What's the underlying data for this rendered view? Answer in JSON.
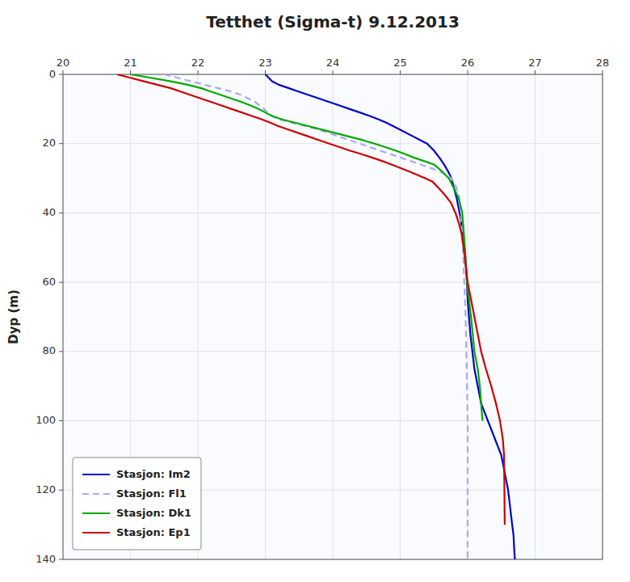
{
  "chart_data": {
    "type": "line",
    "title": "Tetthet (Sigma-t) 9.12.2013",
    "y_label": "Dyp (m)",
    "xlim": [
      20,
      28
    ],
    "ylim": [
      140,
      0
    ],
    "xticks": [
      20,
      21,
      22,
      23,
      24,
      25,
      26,
      27,
      28
    ],
    "yticks": [
      0,
      20,
      40,
      60,
      80,
      100,
      120,
      140
    ],
    "grid": true,
    "legend": "lower left",
    "series": [
      {
        "name": "Stasjon: Im2",
        "color": "#0000cc",
        "line_style": "solid",
        "x": [
          23.0,
          23.05,
          23.1,
          23.2,
          23.35,
          23.5,
          23.65,
          23.8,
          23.95,
          24.1,
          24.25,
          24.4,
          24.55,
          24.68,
          24.8,
          24.9,
          25.0,
          25.1,
          25.2,
          25.3,
          25.4,
          25.5,
          25.58,
          25.65,
          25.71,
          25.76,
          25.8,
          25.84,
          25.87,
          25.9,
          25.92,
          25.94,
          25.96,
          25.97,
          25.98,
          25.99,
          26.0,
          26.02,
          26.04,
          26.07,
          26.1,
          26.15,
          26.2,
          26.3,
          26.4,
          26.5,
          26.55,
          26.6,
          26.63,
          26.66,
          26.68,
          26.69,
          26.7
        ],
        "values": [
          0,
          1,
          2,
          3,
          4,
          5,
          6,
          7,
          8,
          9,
          10,
          11,
          12,
          13,
          14,
          15,
          16,
          17,
          18,
          19,
          20,
          22,
          24,
          26,
          28,
          30,
          33,
          36,
          39,
          42,
          45,
          48,
          51,
          54,
          57,
          60,
          65,
          70,
          75,
          80,
          85,
          90,
          95,
          100,
          105,
          110,
          115,
          120,
          125,
          130,
          133,
          137,
          140
        ]
      },
      {
        "name": "Stasjon: Fl1",
        "color": "#aaaaee",
        "line_style": "dashed",
        "x": [
          21.5,
          21.7,
          21.9,
          22.1,
          22.3,
          22.5,
          22.65,
          22.75,
          22.85,
          22.92,
          22.98,
          23.03,
          23.1,
          23.2,
          23.4,
          23.6,
          23.8,
          23.95,
          24.1,
          24.25,
          24.4,
          24.55,
          24.7,
          24.85,
          25.0,
          25.15,
          25.3,
          25.45,
          25.58,
          25.68,
          25.76,
          25.82,
          25.87,
          25.9,
          25.93,
          25.95,
          25.97,
          25.98,
          25.99,
          26.0,
          26.0,
          26.0
        ],
        "values": [
          0,
          1,
          2,
          3,
          4,
          5,
          6,
          7,
          8,
          9,
          10,
          11,
          12,
          13,
          14,
          15,
          16,
          17,
          18,
          19,
          20,
          21,
          22,
          23,
          24,
          25,
          26,
          27,
          28,
          29,
          30,
          32,
          35,
          40,
          50,
          60,
          70,
          80,
          90,
          100,
          120,
          140
        ]
      },
      {
        "name": "Stasjon: Dk1",
        "color": "#00aa00",
        "line_style": "solid",
        "x": [
          21.0,
          21.3,
          21.6,
          21.85,
          22.05,
          22.2,
          22.35,
          22.5,
          22.65,
          22.78,
          22.9,
          23.0,
          23.1,
          23.25,
          23.45,
          23.65,
          23.85,
          24.05,
          24.25,
          24.45,
          24.62,
          24.78,
          24.93,
          25.07,
          25.2,
          25.35,
          25.5,
          25.62,
          25.72,
          25.8,
          25.87,
          25.92,
          25.96,
          25.99,
          26.05,
          26.1,
          26.15,
          26.18,
          26.2,
          26.22
        ],
        "values": [
          0,
          1,
          2,
          3,
          4,
          5,
          6,
          7,
          8,
          9,
          10,
          11,
          12,
          13,
          14,
          15,
          16,
          17,
          18,
          19,
          20,
          21,
          22,
          23,
          24,
          25,
          26,
          28,
          30,
          33,
          36,
          40,
          50,
          60,
          70,
          80,
          85,
          90,
          95,
          100
        ]
      },
      {
        "name": "Stasjon: Ep1",
        "color": "#cc0000",
        "line_style": "solid",
        "x": [
          20.8,
          21.0,
          21.2,
          21.4,
          21.6,
          21.75,
          21.9,
          22.05,
          22.2,
          22.35,
          22.5,
          22.65,
          22.8,
          22.95,
          23.08,
          23.2,
          23.35,
          23.5,
          23.65,
          23.8,
          23.95,
          24.1,
          24.25,
          24.42,
          24.58,
          24.73,
          24.87,
          25.0,
          25.13,
          25.25,
          25.37,
          25.48,
          25.58,
          25.67,
          25.75,
          25.82,
          25.87,
          25.91,
          25.94,
          25.97,
          26.0,
          26.05,
          26.1,
          26.15,
          26.2,
          26.27,
          26.35,
          26.42,
          26.48,
          26.52,
          26.54,
          26.55
        ],
        "values": [
          0,
          1,
          2,
          3,
          4,
          5,
          6,
          7,
          8,
          9,
          10,
          11,
          12,
          13,
          14,
          15,
          16,
          17,
          18,
          19,
          20,
          21,
          22,
          23,
          24,
          25,
          26,
          27,
          28,
          29,
          30,
          31,
          33,
          35,
          37,
          40,
          43,
          46,
          50,
          55,
          60,
          65,
          70,
          75,
          80,
          85,
          90,
          95,
          100,
          105,
          110,
          130
        ]
      }
    ]
  }
}
